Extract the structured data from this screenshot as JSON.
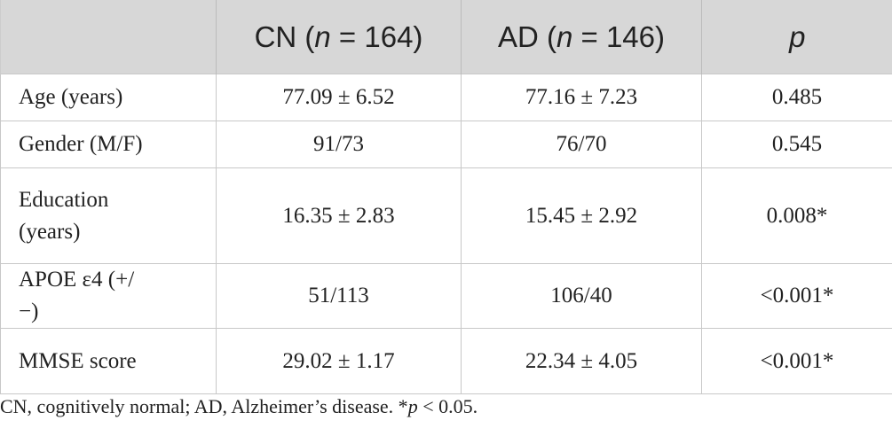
{
  "table": {
    "header": [
      [],
      [
        "CN (",
        "n",
        " = 164)"
      ],
      [
        "AD (",
        "n",
        " = 146)"
      ],
      [
        "",
        "p",
        ""
      ]
    ],
    "rows": [
      [
        "Age (years)",
        "77.09 ± 6.52",
        "77.16 ± 7.23",
        "0.485"
      ],
      [
        "Gender (M/F)",
        "91/73",
        "76/70",
        "0.545"
      ],
      [
        "Education (years)",
        "16.35 ± 2.83",
        "15.45 ± 2.92",
        "0.008*"
      ],
      [
        "APOE ε4 (+/−)",
        "51/113",
        "106/40",
        "<0.001*"
      ],
      [
        "MMSE score",
        "29.02 ± 1.17",
        "22.34 ± 4.05",
        "<0.001*"
      ]
    ]
  },
  "footnote": [
    "CN, cognitively normal; AD, Alzheimer’s disease. *",
    "p",
    " < 0.05."
  ]
}
